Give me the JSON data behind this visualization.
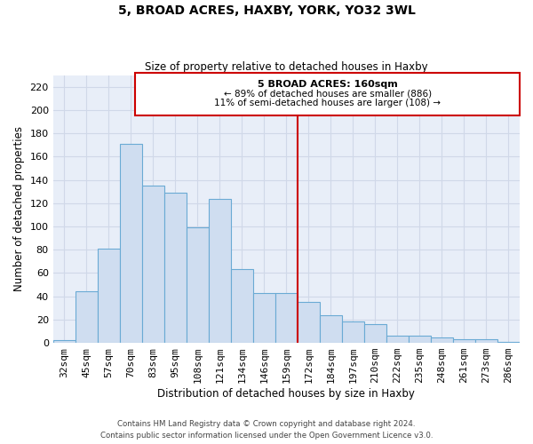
{
  "title": "5, BROAD ACRES, HAXBY, YORK, YO32 3WL",
  "subtitle": "Size of property relative to detached houses in Haxby",
  "xlabel": "Distribution of detached houses by size in Haxby",
  "ylabel": "Number of detached properties",
  "bar_labels": [
    "32sqm",
    "45sqm",
    "57sqm",
    "70sqm",
    "83sqm",
    "95sqm",
    "108sqm",
    "121sqm",
    "134sqm",
    "146sqm",
    "159sqm",
    "172sqm",
    "184sqm",
    "197sqm",
    "210sqm",
    "222sqm",
    "235sqm",
    "248sqm",
    "261sqm",
    "273sqm",
    "286sqm"
  ],
  "bar_values": [
    2,
    44,
    81,
    171,
    135,
    129,
    99,
    124,
    63,
    43,
    43,
    35,
    24,
    18,
    16,
    6,
    6,
    5,
    3,
    3,
    1
  ],
  "bar_color": "#cfddf0",
  "bar_edge_color": "#6aaad4",
  "vline_x": 10.5,
  "vline_color": "#cc0000",
  "ylim": [
    0,
    230
  ],
  "yticks": [
    0,
    20,
    40,
    60,
    80,
    100,
    120,
    140,
    160,
    180,
    200,
    220
  ],
  "annotation_title": "5 BROAD ACRES: 160sqm",
  "annotation_line1": "← 89% of detached houses are smaller (886)",
  "annotation_line2": "11% of semi-detached houses are larger (108) →",
  "annotation_box_color": "#ffffff",
  "annotation_box_edge": "#cc0000",
  "grid_color": "#d0d8e8",
  "footer_line1": "Contains HM Land Registry data © Crown copyright and database right 2024.",
  "footer_line2": "Contains public sector information licensed under the Open Government Licence v3.0.",
  "fig_bg": "#ffffff",
  "ax_bg": "#e8eef8"
}
